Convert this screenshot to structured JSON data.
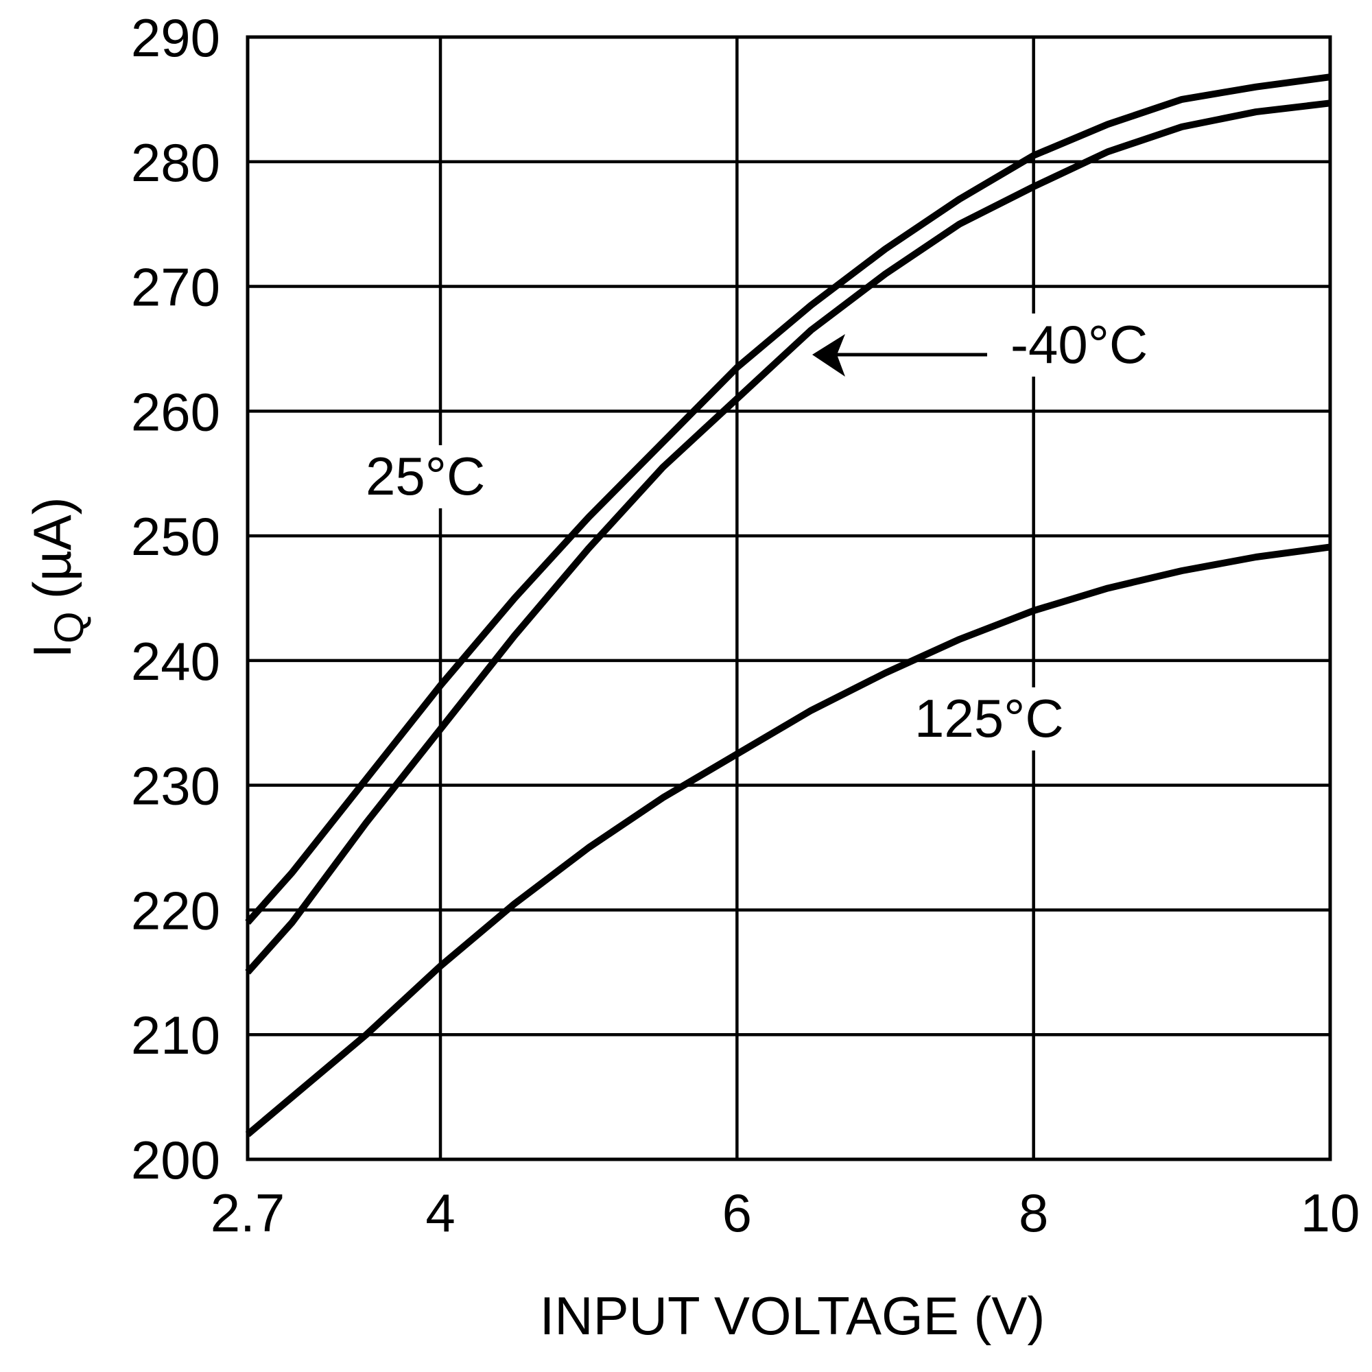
{
  "chart_data": {
    "type": "line",
    "xlabel": "INPUT VOLTAGE (V)",
    "ylabel": {
      "main": "I",
      "sub": "Q",
      "unit": "(µA)"
    },
    "x": [
      2.7,
      3,
      3.5,
      4,
      4.5,
      5,
      5.5,
      6,
      6.5,
      7,
      7.5,
      8,
      8.5,
      9,
      9.5,
      10
    ],
    "series": [
      {
        "name": "25°C",
        "color": "#000000",
        "values": [
          219,
          223,
          230.5,
          238,
          245,
          251.5,
          257.5,
          263.5,
          268.5,
          273,
          277,
          280.5,
          283,
          285,
          286,
          286.8
        ]
      },
      {
        "name": "-40°C",
        "color": "#000000",
        "values": [
          215,
          219,
          227,
          234.5,
          242,
          249,
          255.5,
          261,
          266.5,
          271,
          275,
          278,
          280.8,
          282.8,
          284,
          284.7
        ]
      },
      {
        "name": "125°C",
        "color": "#000000",
        "values": [
          202,
          205,
          210,
          215.5,
          220.5,
          225,
          229,
          232.5,
          236,
          239,
          241.7,
          244,
          245.8,
          247.2,
          248.3,
          249.1
        ]
      }
    ],
    "xlim": [
      2.7,
      10
    ],
    "xticks": [
      2.7,
      4,
      6,
      8,
      10
    ],
    "ylim": [
      200,
      290
    ],
    "yticks": [
      200,
      210,
      220,
      230,
      240,
      250,
      260,
      270,
      280,
      290
    ],
    "grid": true
  }
}
